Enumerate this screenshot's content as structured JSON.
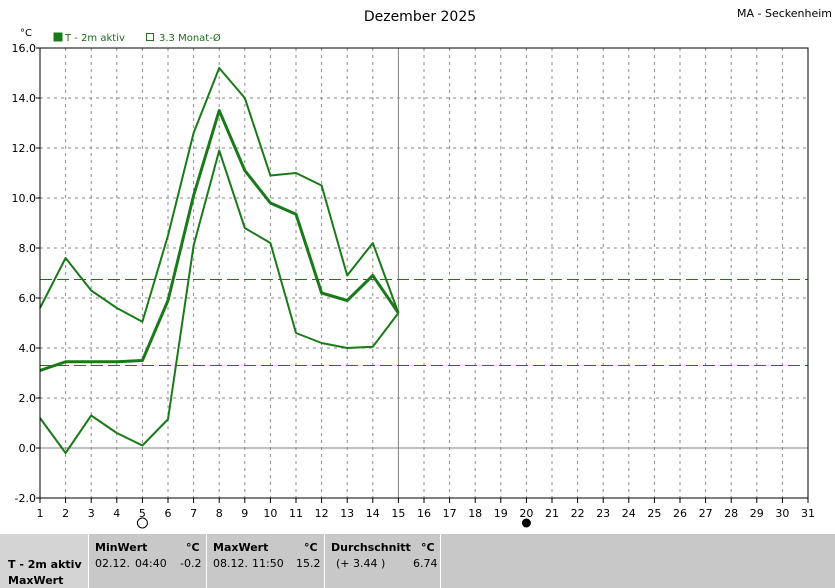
{
  "header": {
    "title": "Dezember 2025",
    "station": "MA - Seckenheim",
    "unit": "°C"
  },
  "legend": [
    {
      "label": "T - 2m aktiv",
      "filled": true
    },
    {
      "label": "3.3 Monat-Ø",
      "filled": false
    }
  ],
  "colors": {
    "line": "#1a7a1a",
    "grid": "#808080",
    "axis": "#000000",
    "panel": "#c8c8c8"
  },
  "moon_markers": [
    {
      "day": 5,
      "phase": "full-moon-icon"
    },
    {
      "day": 20,
      "phase": "new-moon-icon"
    }
  ],
  "chart_data": {
    "type": "line",
    "x": [
      1,
      2,
      3,
      4,
      5,
      6,
      7,
      8,
      9,
      10,
      11,
      12,
      13,
      14,
      15
    ],
    "xlim": [
      1,
      31
    ],
    "ylim": [
      -2,
      16
    ],
    "yticks": [
      "-2.0",
      "0.0",
      "2.0",
      "4.0",
      "6.0",
      "8.0",
      "10.0",
      "12.0",
      "14.0",
      "16.0"
    ],
    "xticks": [
      "1",
      "2",
      "3",
      "4",
      "5",
      "6",
      "7",
      "8",
      "9",
      "10",
      "11",
      "12",
      "13",
      "14",
      "15",
      "16",
      "17",
      "18",
      "19",
      "20",
      "21",
      "22",
      "23",
      "24",
      "25",
      "26",
      "27",
      "28",
      "29",
      "30",
      "31"
    ],
    "grid": true,
    "series": [
      {
        "name": "T - 2m aktiv",
        "values": [
          3.1,
          3.45,
          3.45,
          3.45,
          3.5,
          5.9,
          10.1,
          13.5,
          11.1,
          9.8,
          9.35,
          6.2,
          5.9,
          6.9,
          5.4
        ],
        "width": 3
      },
      {
        "values": [
          5.6,
          7.6,
          6.3,
          5.6,
          5.05,
          8.5,
          12.6,
          15.2,
          14.0,
          10.9,
          11.0,
          10.5,
          6.9,
          8.2,
          5.4
        ],
        "width": 2
      },
      {
        "values": [
          1.2,
          -0.2,
          1.3,
          0.6,
          0.1,
          1.15,
          8.1,
          11.9,
          8.8,
          8.2,
          4.6,
          4.2,
          4.0,
          4.05,
          5.4
        ],
        "width": 2
      }
    ],
    "reference_lines": [
      {
        "name": "3.3 Monat-Ø",
        "value": 3.3
      },
      {
        "value": 6.74
      }
    ]
  },
  "stats": {
    "row_label": "T - 2m aktiv",
    "row_label2": "MaxWert",
    "min": {
      "header": "MinWert",
      "unit": "°C",
      "date": "02.12.",
      "time": "04:40",
      "value": "-0.2"
    },
    "max": {
      "header": "MaxWert",
      "unit": "°C",
      "date": "08.12.",
      "time": "11:50",
      "value": "15.2"
    },
    "avg": {
      "header": "Durchschnitt",
      "unit": "°C",
      "delta": "(+ 3.44 )",
      "value": "6.74"
    }
  }
}
